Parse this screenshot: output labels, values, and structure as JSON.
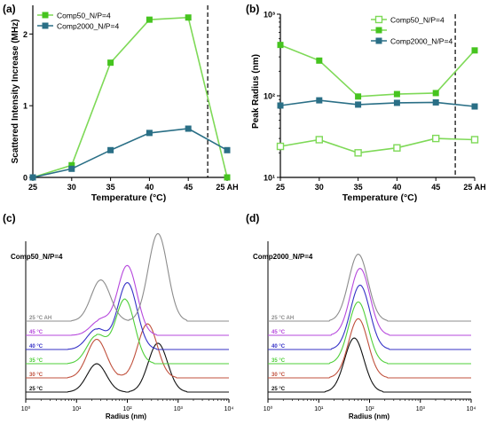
{
  "colors": {
    "lightgreen": "#7ed957",
    "darkgreen": "#46c41f",
    "teal": "#2a6f86",
    "t25": "#111111",
    "t30": "#c0503c",
    "t35": "#4fcf3a",
    "t40": "#3430c6",
    "t45": "#b648dd",
    "tAH": "#8c8c8c",
    "axis": "#000000"
  },
  "chart_data": [
    {
      "id": "a",
      "panel_label": "(a)",
      "type": "line",
      "xlabel": "Temperature (°C)",
      "ylabel": "Scattered Intensity Increase (MHz)",
      "categories": [
        "25",
        "30",
        "35",
        "40",
        "45",
        "25 AH"
      ],
      "ylim": [
        0,
        2.4
      ],
      "yticks": [
        "0",
        "1",
        "2"
      ],
      "series": [
        {
          "name": "Comp50_N/P=4",
          "values": [
            0,
            0.17,
            1.6,
            2.2,
            2.23,
            0
          ]
        },
        {
          "name": "Comp2000_N/P=4",
          "values": [
            0,
            0.12,
            0.38,
            0.62,
            0.68,
            0.38
          ]
        }
      ],
      "legend": "top-left",
      "annotations": [
        "dashed vertical line between 45 and 25 AH"
      ]
    },
    {
      "id": "b",
      "panel_label": "(b)",
      "type": "line",
      "xlabel": "Temperature (°C)",
      "ylabel": "Peak Radius (nm)",
      "categories": [
        "25",
        "30",
        "35",
        "40",
        "45",
        "25 AH"
      ],
      "yscale": "log",
      "ylim": [
        10,
        1000
      ],
      "yticks": [
        "10¹",
        "10²",
        "10³"
      ],
      "series": [
        {
          "name": "Comp50_N/P=4",
          "values": [
            24,
            29,
            20,
            23,
            30,
            29
          ]
        },
        {
          "name": "",
          "values": [
            420,
            270,
            98,
            105,
            108,
            360
          ]
        },
        {
          "name": "Comp2000_N/P=4",
          "values": [
            76,
            88,
            78,
            82,
            83,
            74
          ]
        }
      ],
      "legend": "top-right",
      "annotations": [
        "dashed vertical line between 45 and 25 AH"
      ]
    },
    {
      "id": "c",
      "panel_label": "(c)",
      "type": "line",
      "title": "Comp50_N/P=4",
      "xlabel": "Radius (nm)",
      "xscale": "log",
      "xlim": [
        1,
        10000
      ],
      "xticks": [
        "10⁰",
        "10¹",
        "10²",
        "10³",
        "10⁴"
      ],
      "series": [
        {
          "name": "25 °C",
          "peaks": [
            {
              "x": 25,
              "h": 0.55
            },
            {
              "x": 400,
              "h": 0.95
            }
          ]
        },
        {
          "name": "30 °C",
          "peaks": [
            {
              "x": 25,
              "h": 0.75
            },
            {
              "x": 250,
              "h": 1.05
            }
          ]
        },
        {
          "name": "35 °C",
          "peaks": [
            {
              "x": 25,
              "h": 0.55
            },
            {
              "x": 90,
              "h": 1.25
            }
          ]
        },
        {
          "name": "40 °C",
          "peaks": [
            {
              "x": 25,
              "h": 0.4
            },
            {
              "x": 100,
              "h": 1.3
            }
          ]
        },
        {
          "name": "45 °C",
          "peaks": [
            {
              "x": 30,
              "h": 0.3
            },
            {
              "x": 100,
              "h": 1.35
            }
          ]
        },
        {
          "name": "25 °C AH",
          "peaks": [
            {
              "x": 30,
              "h": 0.8
            },
            {
              "x": 400,
              "h": 1.7
            }
          ]
        }
      ]
    },
    {
      "id": "d",
      "panel_label": "(d)",
      "type": "line",
      "title": "Comp2000_N/P=4",
      "xlabel": "Radius (nm)",
      "xscale": "log",
      "xlim": [
        1,
        10000
      ],
      "xticks": [
        "10⁰",
        "10¹",
        "10²",
        "10³",
        "10⁴"
      ],
      "series": [
        {
          "name": "25 °C",
          "peaks": [
            {
              "x": 50,
              "h": 1.05
            }
          ]
        },
        {
          "name": "30 °C",
          "peaks": [
            {
              "x": 60,
              "h": 1.15
            }
          ]
        },
        {
          "name": "35 °C",
          "peaks": [
            {
              "x": 60,
              "h": 1.2
            }
          ]
        },
        {
          "name": "40 °C",
          "peaks": [
            {
              "x": 65,
              "h": 1.25
            }
          ]
        },
        {
          "name": "45 °C",
          "peaks": [
            {
              "x": 65,
              "h": 1.3
            }
          ]
        },
        {
          "name": "25 °C AH",
          "peaks": [
            {
              "x": 60,
              "h": 1.3
            }
          ]
        }
      ]
    }
  ]
}
